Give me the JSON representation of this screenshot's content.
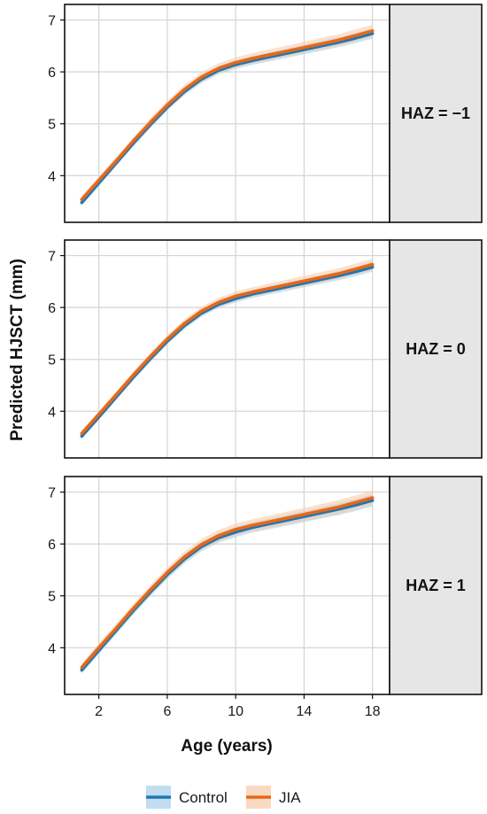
{
  "chart_data": {
    "type": "line",
    "xlabel": "Age (years)",
    "ylabel": "Predicted HJSCT (mm)",
    "xlim": [
      0,
      19
    ],
    "ylim": [
      3.1,
      7.3
    ],
    "x_ticks": [
      2,
      6,
      10,
      14,
      18
    ],
    "y_ticks": [
      4,
      5,
      6,
      7
    ],
    "grid": true,
    "legend_position": "bottom",
    "legend": [
      {
        "name": "Control",
        "color": "#1f77b4",
        "band_color": "#a6cfe8"
      },
      {
        "name": "JIA",
        "color": "#e5681a",
        "band_color": "#f5c9a6"
      }
    ],
    "facets": [
      {
        "label": "HAZ = −1",
        "x": [
          1,
          2,
          3,
          4,
          5,
          6,
          7,
          8,
          9,
          10,
          11,
          12,
          13,
          14,
          15,
          16,
          17,
          18
        ],
        "series": [
          {
            "name": "Control",
            "values": [
              3.48,
              3.86,
              4.24,
              4.62,
              4.98,
              5.32,
              5.62,
              5.86,
              6.03,
              6.14,
              6.22,
              6.29,
              6.36,
              6.43,
              6.5,
              6.57,
              6.65,
              6.74
            ]
          },
          {
            "name": "JIA",
            "values": [
              3.54,
              3.91,
              4.28,
              4.66,
              5.02,
              5.36,
              5.66,
              5.9,
              6.07,
              6.18,
              6.26,
              6.33,
              6.4,
              6.47,
              6.54,
              6.61,
              6.7,
              6.79
            ]
          }
        ]
      },
      {
        "label": "HAZ = 0",
        "x": [
          1,
          2,
          3,
          4,
          5,
          6,
          7,
          8,
          9,
          10,
          11,
          12,
          13,
          14,
          15,
          16,
          17,
          18
        ],
        "series": [
          {
            "name": "Control",
            "values": [
              3.52,
              3.89,
              4.27,
              4.65,
              5.01,
              5.35,
              5.65,
              5.89,
              6.06,
              6.17,
              6.26,
              6.33,
              6.4,
              6.47,
              6.54,
              6.61,
              6.69,
              6.78
            ]
          },
          {
            "name": "JIA",
            "values": [
              3.57,
              3.94,
              4.31,
              4.69,
              5.05,
              5.39,
              5.69,
              5.93,
              6.1,
              6.22,
              6.3,
              6.37,
              6.44,
              6.51,
              6.58,
              6.65,
              6.74,
              6.83
            ]
          }
        ]
      },
      {
        "label": "HAZ = 1",
        "x": [
          1,
          2,
          3,
          4,
          5,
          6,
          7,
          8,
          9,
          10,
          11,
          12,
          13,
          14,
          15,
          16,
          17,
          18
        ],
        "series": [
          {
            "name": "Control",
            "values": [
              3.57,
              3.95,
              4.33,
              4.71,
              5.07,
              5.41,
              5.71,
              5.95,
              6.12,
              6.23,
              6.32,
              6.39,
              6.46,
              6.53,
              6.6,
              6.67,
              6.75,
              6.84
            ]
          },
          {
            "name": "JIA",
            "values": [
              3.62,
              4.0,
              4.37,
              4.75,
              5.11,
              5.45,
              5.75,
              5.99,
              6.16,
              6.28,
              6.36,
              6.43,
              6.5,
              6.57,
              6.64,
              6.71,
              6.8,
              6.89
            ]
          }
        ]
      }
    ]
  }
}
